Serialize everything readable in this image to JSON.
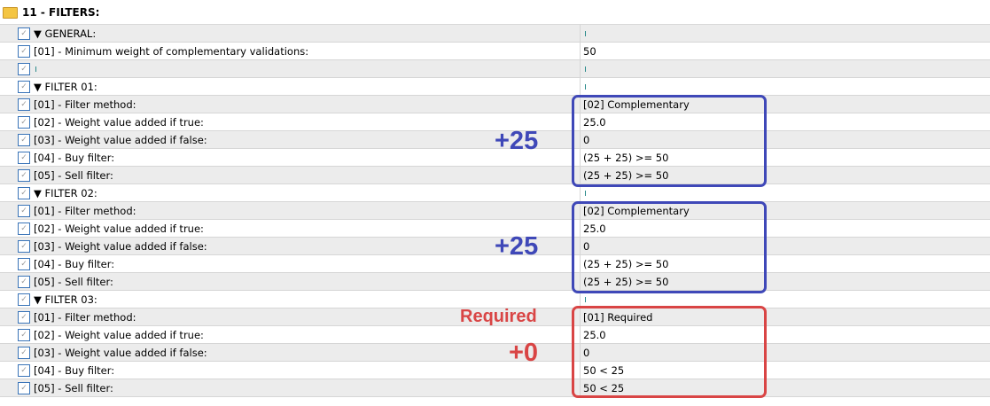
{
  "header": {
    "title": "11 - FILTERS:",
    "icon": "folder-icon"
  },
  "rows": [
    {
      "label": "▼ GENERAL:",
      "value": ""
    },
    {
      "label": "[01] - Minimum weight of complementary validations:",
      "value": "50"
    },
    {
      "label": "",
      "value": ""
    },
    {
      "label": "▼ FILTER 01:",
      "value": ""
    },
    {
      "label": "[01] - Filter method:",
      "value": "[02] Complementary"
    },
    {
      "label": "[02] - Weight value added if true:",
      "value": "25.0"
    },
    {
      "label": "[03] - Weight value added if false:",
      "value": "0"
    },
    {
      "label": "[04] - Buy filter:",
      "value": "(25 + 25) >= 50"
    },
    {
      "label": "[05] - Sell filter:",
      "value": "(25 + 25) >= 50"
    },
    {
      "label": "▼ FILTER 02:",
      "value": ""
    },
    {
      "label": "[01] - Filter method:",
      "value": "[02] Complementary"
    },
    {
      "label": "[02] - Weight value added if true:",
      "value": "25.0"
    },
    {
      "label": "[03] - Weight value added if false:",
      "value": "0"
    },
    {
      "label": "[04] - Buy filter:",
      "value": "(25 + 25) >= 50"
    },
    {
      "label": "[05] - Sell filter:",
      "value": "(25 + 25) >= 50"
    },
    {
      "label": "▼ FILTER 03:",
      "value": ""
    },
    {
      "label": "[01] - Filter method:",
      "value": "[01] Required"
    },
    {
      "label": "[02] - Weight value added if true:",
      "value": "25.0"
    },
    {
      "label": "[03] - Weight value added if false:",
      "value": "0"
    },
    {
      "label": "[04] - Buy filter:",
      "value": "50 < 25"
    },
    {
      "label": "[05] - Sell filter:",
      "value": "50 < 25"
    }
  ],
  "annotations": {
    "filter01": "+25",
    "filter02": "+25",
    "filter03_method": "Required",
    "filter03": "+0"
  },
  "colors": {
    "blue": "#3f48b8",
    "red": "#d94545"
  }
}
